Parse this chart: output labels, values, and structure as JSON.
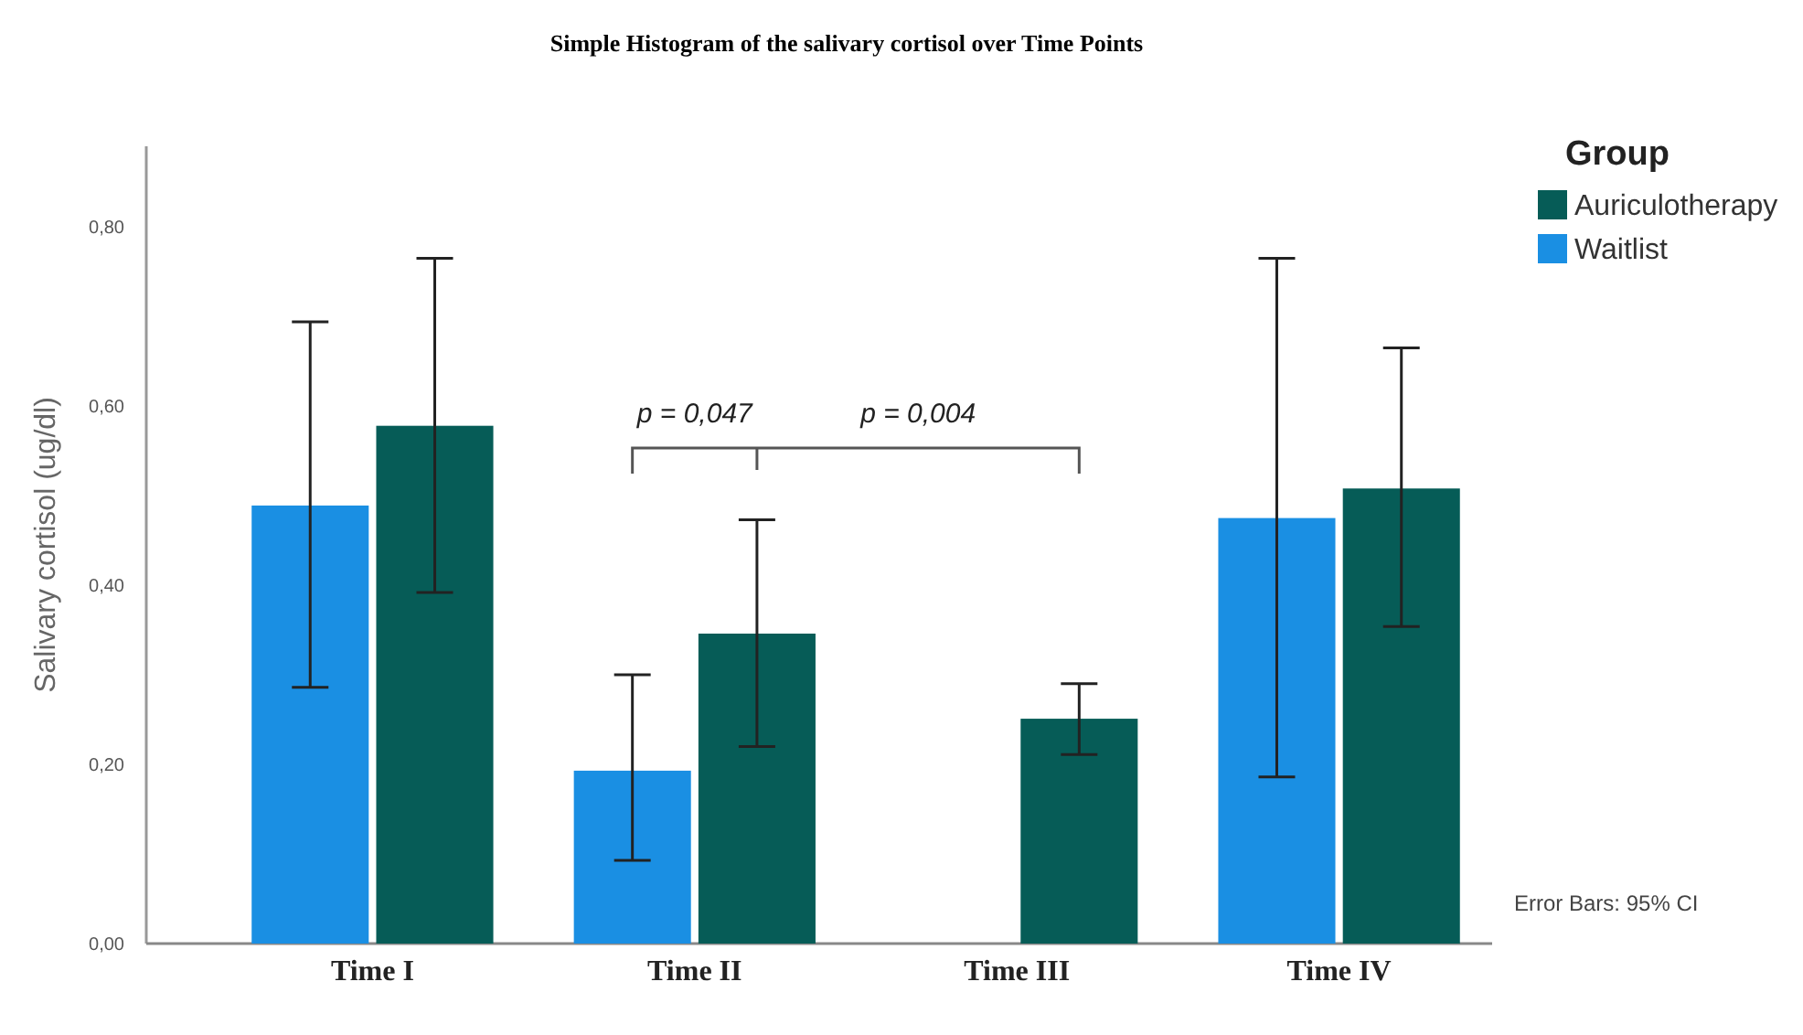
{
  "chart_data": {
    "type": "bar",
    "title": "Simple Histogram of the salivary cortisol over Time Points",
    "ylabel": "Salivary cortisol (ug/dl)",
    "legend_title": "Group",
    "categories": [
      "Time I",
      "Time II",
      "Time III",
      "Time IV"
    ],
    "series": [
      {
        "name": "Waitlist",
        "color": "#1a8fe3",
        "values": [
          0.489,
          0.193,
          null,
          0.475
        ],
        "errors": [
          [
            0.286,
            0.694
          ],
          [
            0.093,
            0.3
          ],
          null,
          [
            0.186,
            0.765
          ]
        ]
      },
      {
        "name": "Auriculotherapy",
        "color": "#065c57",
        "values": [
          0.578,
          0.346,
          0.251,
          0.508
        ],
        "errors": [
          [
            0.392,
            0.765
          ],
          [
            0.22,
            0.473
          ],
          [
            0.211,
            0.29
          ],
          [
            0.354,
            0.665
          ]
        ]
      }
    ],
    "ylim": [
      0,
      0.89
    ],
    "yticks": [
      {
        "value": 0,
        "label": "0,00"
      },
      {
        "value": 0.2,
        "label": "0,20"
      },
      {
        "value": 0.4,
        "label": "0,40"
      },
      {
        "value": 0.6,
        "label": "0,60"
      },
      {
        "value": 0.8,
        "label": "0,80"
      }
    ],
    "grid": false,
    "legend": "top right",
    "annotations": [
      "p = 0,047",
      "p = 0,004",
      "Error Bars: 95% CI"
    ]
  }
}
